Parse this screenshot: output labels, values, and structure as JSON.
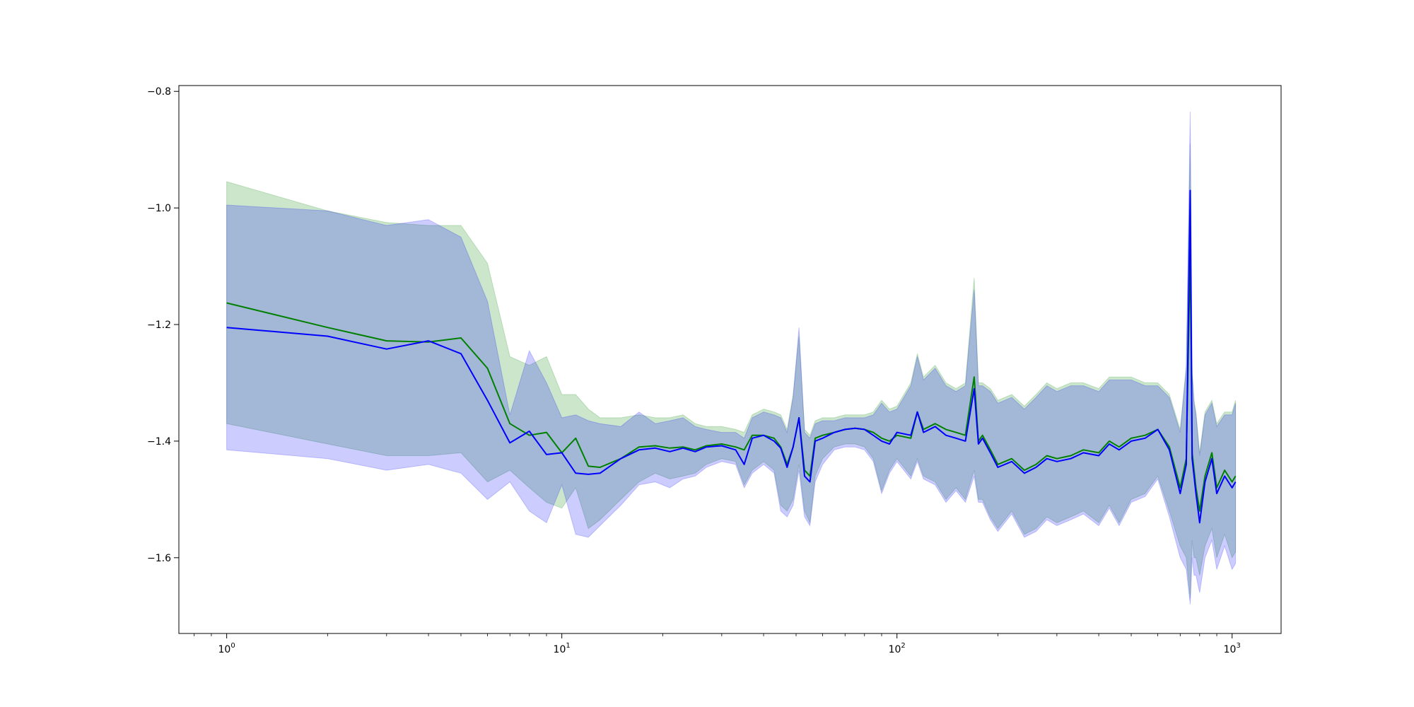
{
  "chart_data": {
    "type": "line",
    "title": "",
    "xlabel": "",
    "ylabel": "",
    "xscale": "log",
    "xlim": [
      0.72,
      1400
    ],
    "ylim": [
      -1.73,
      -0.79
    ],
    "grid": false,
    "legend": "none",
    "x_ticks": [
      {
        "value": 1,
        "base": "10",
        "exp": "0"
      },
      {
        "value": 10,
        "base": "10",
        "exp": "1"
      },
      {
        "value": 100,
        "base": "10",
        "exp": "2"
      },
      {
        "value": 1000,
        "base": "10",
        "exp": "3"
      }
    ],
    "y_ticks": [
      {
        "value": -0.8,
        "label": "−0.8"
      },
      {
        "value": -1.0,
        "label": "−1.0"
      },
      {
        "value": -1.2,
        "label": "−1.2"
      },
      {
        "value": -1.4,
        "label": "−1.4"
      },
      {
        "value": -1.6,
        "label": "−1.6"
      }
    ],
    "series": [
      {
        "color": "#008000",
        "band_color": "#008000",
        "band_opacity": 0.2,
        "x": [
          1,
          2,
          3,
          4,
          5,
          6,
          7,
          8,
          9,
          10,
          11,
          12,
          13,
          15,
          17,
          19,
          21,
          23,
          25,
          27,
          30,
          33,
          35,
          37,
          40,
          43,
          45,
          47,
          49,
          51,
          53,
          55,
          57,
          60,
          65,
          70,
          75,
          80,
          85,
          90,
          95,
          100,
          110,
          115,
          120,
          130,
          140,
          150,
          160,
          170,
          175,
          180,
          190,
          200,
          220,
          240,
          260,
          280,
          300,
          330,
          360,
          400,
          430,
          460,
          500,
          550,
          600,
          650,
          700,
          730,
          750,
          760,
          770,
          780,
          800,
          830,
          870,
          900,
          950,
          1000,
          1024
        ],
        "y": [
          -1.163,
          -1.205,
          -1.228,
          -1.23,
          -1.223,
          -1.275,
          -1.37,
          -1.39,
          -1.385,
          -1.42,
          -1.395,
          -1.443,
          -1.445,
          -1.43,
          -1.41,
          -1.408,
          -1.412,
          -1.41,
          -1.415,
          -1.408,
          -1.405,
          -1.41,
          -1.415,
          -1.39,
          -1.39,
          -1.395,
          -1.41,
          -1.44,
          -1.41,
          -1.36,
          -1.45,
          -1.46,
          -1.395,
          -1.39,
          -1.385,
          -1.38,
          -1.378,
          -1.38,
          -1.385,
          -1.395,
          -1.4,
          -1.39,
          -1.395,
          -1.35,
          -1.38,
          -1.37,
          -1.38,
          -1.385,
          -1.39,
          -1.29,
          -1.4,
          -1.39,
          -1.415,
          -1.44,
          -1.43,
          -1.45,
          -1.44,
          -1.425,
          -1.43,
          -1.425,
          -1.415,
          -1.42,
          -1.4,
          -1.41,
          -1.395,
          -1.39,
          -1.38,
          -1.41,
          -1.48,
          -1.43,
          -1.07,
          -1.42,
          -1.45,
          -1.48,
          -1.52,
          -1.46,
          -1.42,
          -1.48,
          -1.45,
          -1.47,
          -1.46
        ],
        "lower": [
          -1.37,
          -1.405,
          -1.425,
          -1.425,
          -1.42,
          -1.47,
          -1.45,
          -1.48,
          -1.505,
          -1.515,
          -1.48,
          -1.55,
          -1.535,
          -1.5,
          -1.47,
          -1.455,
          -1.465,
          -1.46,
          -1.455,
          -1.44,
          -1.43,
          -1.435,
          -1.475,
          -1.45,
          -1.435,
          -1.45,
          -1.51,
          -1.52,
          -1.5,
          -1.44,
          -1.52,
          -1.54,
          -1.46,
          -1.43,
          -1.41,
          -1.405,
          -1.405,
          -1.41,
          -1.43,
          -1.485,
          -1.45,
          -1.43,
          -1.46,
          -1.43,
          -1.46,
          -1.47,
          -1.5,
          -1.48,
          -1.5,
          -1.45,
          -1.5,
          -1.5,
          -1.53,
          -1.55,
          -1.52,
          -1.56,
          -1.55,
          -1.53,
          -1.54,
          -1.53,
          -1.52,
          -1.54,
          -1.51,
          -1.54,
          -1.5,
          -1.49,
          -1.46,
          -1.52,
          -1.58,
          -1.6,
          -1.67,
          -1.57,
          -1.6,
          -1.6,
          -1.63,
          -1.58,
          -1.55,
          -1.6,
          -1.56,
          -1.6,
          -1.59
        ],
        "upper": [
          -0.955,
          -1.005,
          -1.025,
          -1.03,
          -1.03,
          -1.095,
          -1.255,
          -1.27,
          -1.255,
          -1.32,
          -1.32,
          -1.345,
          -1.36,
          -1.36,
          -1.355,
          -1.36,
          -1.36,
          -1.355,
          -1.37,
          -1.375,
          -1.375,
          -1.38,
          -1.385,
          -1.355,
          -1.345,
          -1.35,
          -1.355,
          -1.38,
          -1.32,
          -1.22,
          -1.38,
          -1.39,
          -1.365,
          -1.36,
          -1.36,
          -1.355,
          -1.355,
          -1.355,
          -1.35,
          -1.33,
          -1.345,
          -1.34,
          -1.3,
          -1.25,
          -1.29,
          -1.27,
          -1.3,
          -1.31,
          -1.3,
          -1.12,
          -1.3,
          -1.3,
          -1.31,
          -1.33,
          -1.32,
          -1.34,
          -1.32,
          -1.3,
          -1.31,
          -1.3,
          -1.3,
          -1.31,
          -1.29,
          -1.29,
          -1.29,
          -1.3,
          -1.3,
          -1.32,
          -1.38,
          -1.27,
          -0.89,
          -1.28,
          -1.33,
          -1.35,
          -1.42,
          -1.35,
          -1.33,
          -1.37,
          -1.35,
          -1.35,
          -1.33
        ]
      },
      {
        "color": "#0000ff",
        "band_color": "#0000ff",
        "band_opacity": 0.2,
        "x": [
          1,
          2,
          3,
          4,
          5,
          6,
          7,
          8,
          9,
          10,
          11,
          12,
          13,
          15,
          17,
          19,
          21,
          23,
          25,
          27,
          30,
          33,
          35,
          37,
          40,
          43,
          45,
          47,
          49,
          51,
          53,
          55,
          57,
          60,
          65,
          70,
          75,
          80,
          85,
          90,
          95,
          100,
          110,
          115,
          120,
          130,
          140,
          150,
          160,
          170,
          175,
          180,
          190,
          200,
          220,
          240,
          260,
          280,
          300,
          330,
          360,
          400,
          430,
          460,
          500,
          550,
          600,
          650,
          700,
          730,
          750,
          760,
          770,
          780,
          800,
          830,
          870,
          900,
          950,
          1000,
          1024
        ],
        "y": [
          -1.205,
          -1.22,
          -1.242,
          -1.228,
          -1.25,
          -1.33,
          -1.403,
          -1.383,
          -1.423,
          -1.42,
          -1.455,
          -1.457,
          -1.455,
          -1.43,
          -1.415,
          -1.412,
          -1.418,
          -1.412,
          -1.418,
          -1.41,
          -1.408,
          -1.415,
          -1.44,
          -1.395,
          -1.39,
          -1.4,
          -1.412,
          -1.445,
          -1.41,
          -1.36,
          -1.46,
          -1.47,
          -1.4,
          -1.395,
          -1.385,
          -1.38,
          -1.378,
          -1.38,
          -1.39,
          -1.4,
          -1.405,
          -1.385,
          -1.39,
          -1.35,
          -1.385,
          -1.375,
          -1.39,
          -1.395,
          -1.4,
          -1.31,
          -1.405,
          -1.395,
          -1.42,
          -1.445,
          -1.435,
          -1.455,
          -1.445,
          -1.43,
          -1.435,
          -1.43,
          -1.42,
          -1.425,
          -1.405,
          -1.415,
          -1.4,
          -1.395,
          -1.38,
          -1.415,
          -1.49,
          -1.44,
          -0.97,
          -1.43,
          -1.46,
          -1.49,
          -1.54,
          -1.47,
          -1.43,
          -1.49,
          -1.46,
          -1.48,
          -1.47
        ],
        "lower": [
          -1.415,
          -1.43,
          -1.45,
          -1.44,
          -1.455,
          -1.5,
          -1.47,
          -1.52,
          -1.54,
          -1.475,
          -1.56,
          -1.565,
          -1.545,
          -1.51,
          -1.475,
          -1.47,
          -1.48,
          -1.465,
          -1.46,
          -1.445,
          -1.435,
          -1.44,
          -1.48,
          -1.455,
          -1.44,
          -1.455,
          -1.52,
          -1.53,
          -1.51,
          -1.45,
          -1.53,
          -1.545,
          -1.47,
          -1.44,
          -1.415,
          -1.41,
          -1.41,
          -1.415,
          -1.435,
          -1.49,
          -1.455,
          -1.435,
          -1.465,
          -1.435,
          -1.465,
          -1.475,
          -1.505,
          -1.485,
          -1.505,
          -1.46,
          -1.505,
          -1.505,
          -1.535,
          -1.555,
          -1.525,
          -1.565,
          -1.555,
          -1.535,
          -1.545,
          -1.535,
          -1.525,
          -1.545,
          -1.515,
          -1.545,
          -1.505,
          -1.495,
          -1.465,
          -1.53,
          -1.6,
          -1.62,
          -1.68,
          -1.6,
          -1.63,
          -1.63,
          -1.66,
          -1.6,
          -1.57,
          -1.62,
          -1.58,
          -1.62,
          -1.61
        ],
        "upper": [
          -0.995,
          -1.005,
          -1.03,
          -1.02,
          -1.05,
          -1.16,
          -1.355,
          -1.245,
          -1.3,
          -1.36,
          -1.355,
          -1.365,
          -1.37,
          -1.375,
          -1.35,
          -1.37,
          -1.365,
          -1.36,
          -1.375,
          -1.38,
          -1.385,
          -1.385,
          -1.395,
          -1.36,
          -1.35,
          -1.355,
          -1.36,
          -1.385,
          -1.325,
          -1.205,
          -1.385,
          -1.395,
          -1.37,
          -1.365,
          -1.365,
          -1.36,
          -1.36,
          -1.36,
          -1.355,
          -1.335,
          -1.35,
          -1.345,
          -1.305,
          -1.255,
          -1.295,
          -1.275,
          -1.305,
          -1.315,
          -1.305,
          -1.14,
          -1.305,
          -1.305,
          -1.315,
          -1.335,
          -1.325,
          -1.345,
          -1.325,
          -1.305,
          -1.315,
          -1.305,
          -1.305,
          -1.315,
          -1.295,
          -1.295,
          -1.295,
          -1.305,
          -1.305,
          -1.325,
          -1.385,
          -1.275,
          -0.835,
          -1.285,
          -1.335,
          -1.355,
          -1.425,
          -1.355,
          -1.335,
          -1.375,
          -1.355,
          -1.355,
          -1.335
        ]
      }
    ]
  }
}
